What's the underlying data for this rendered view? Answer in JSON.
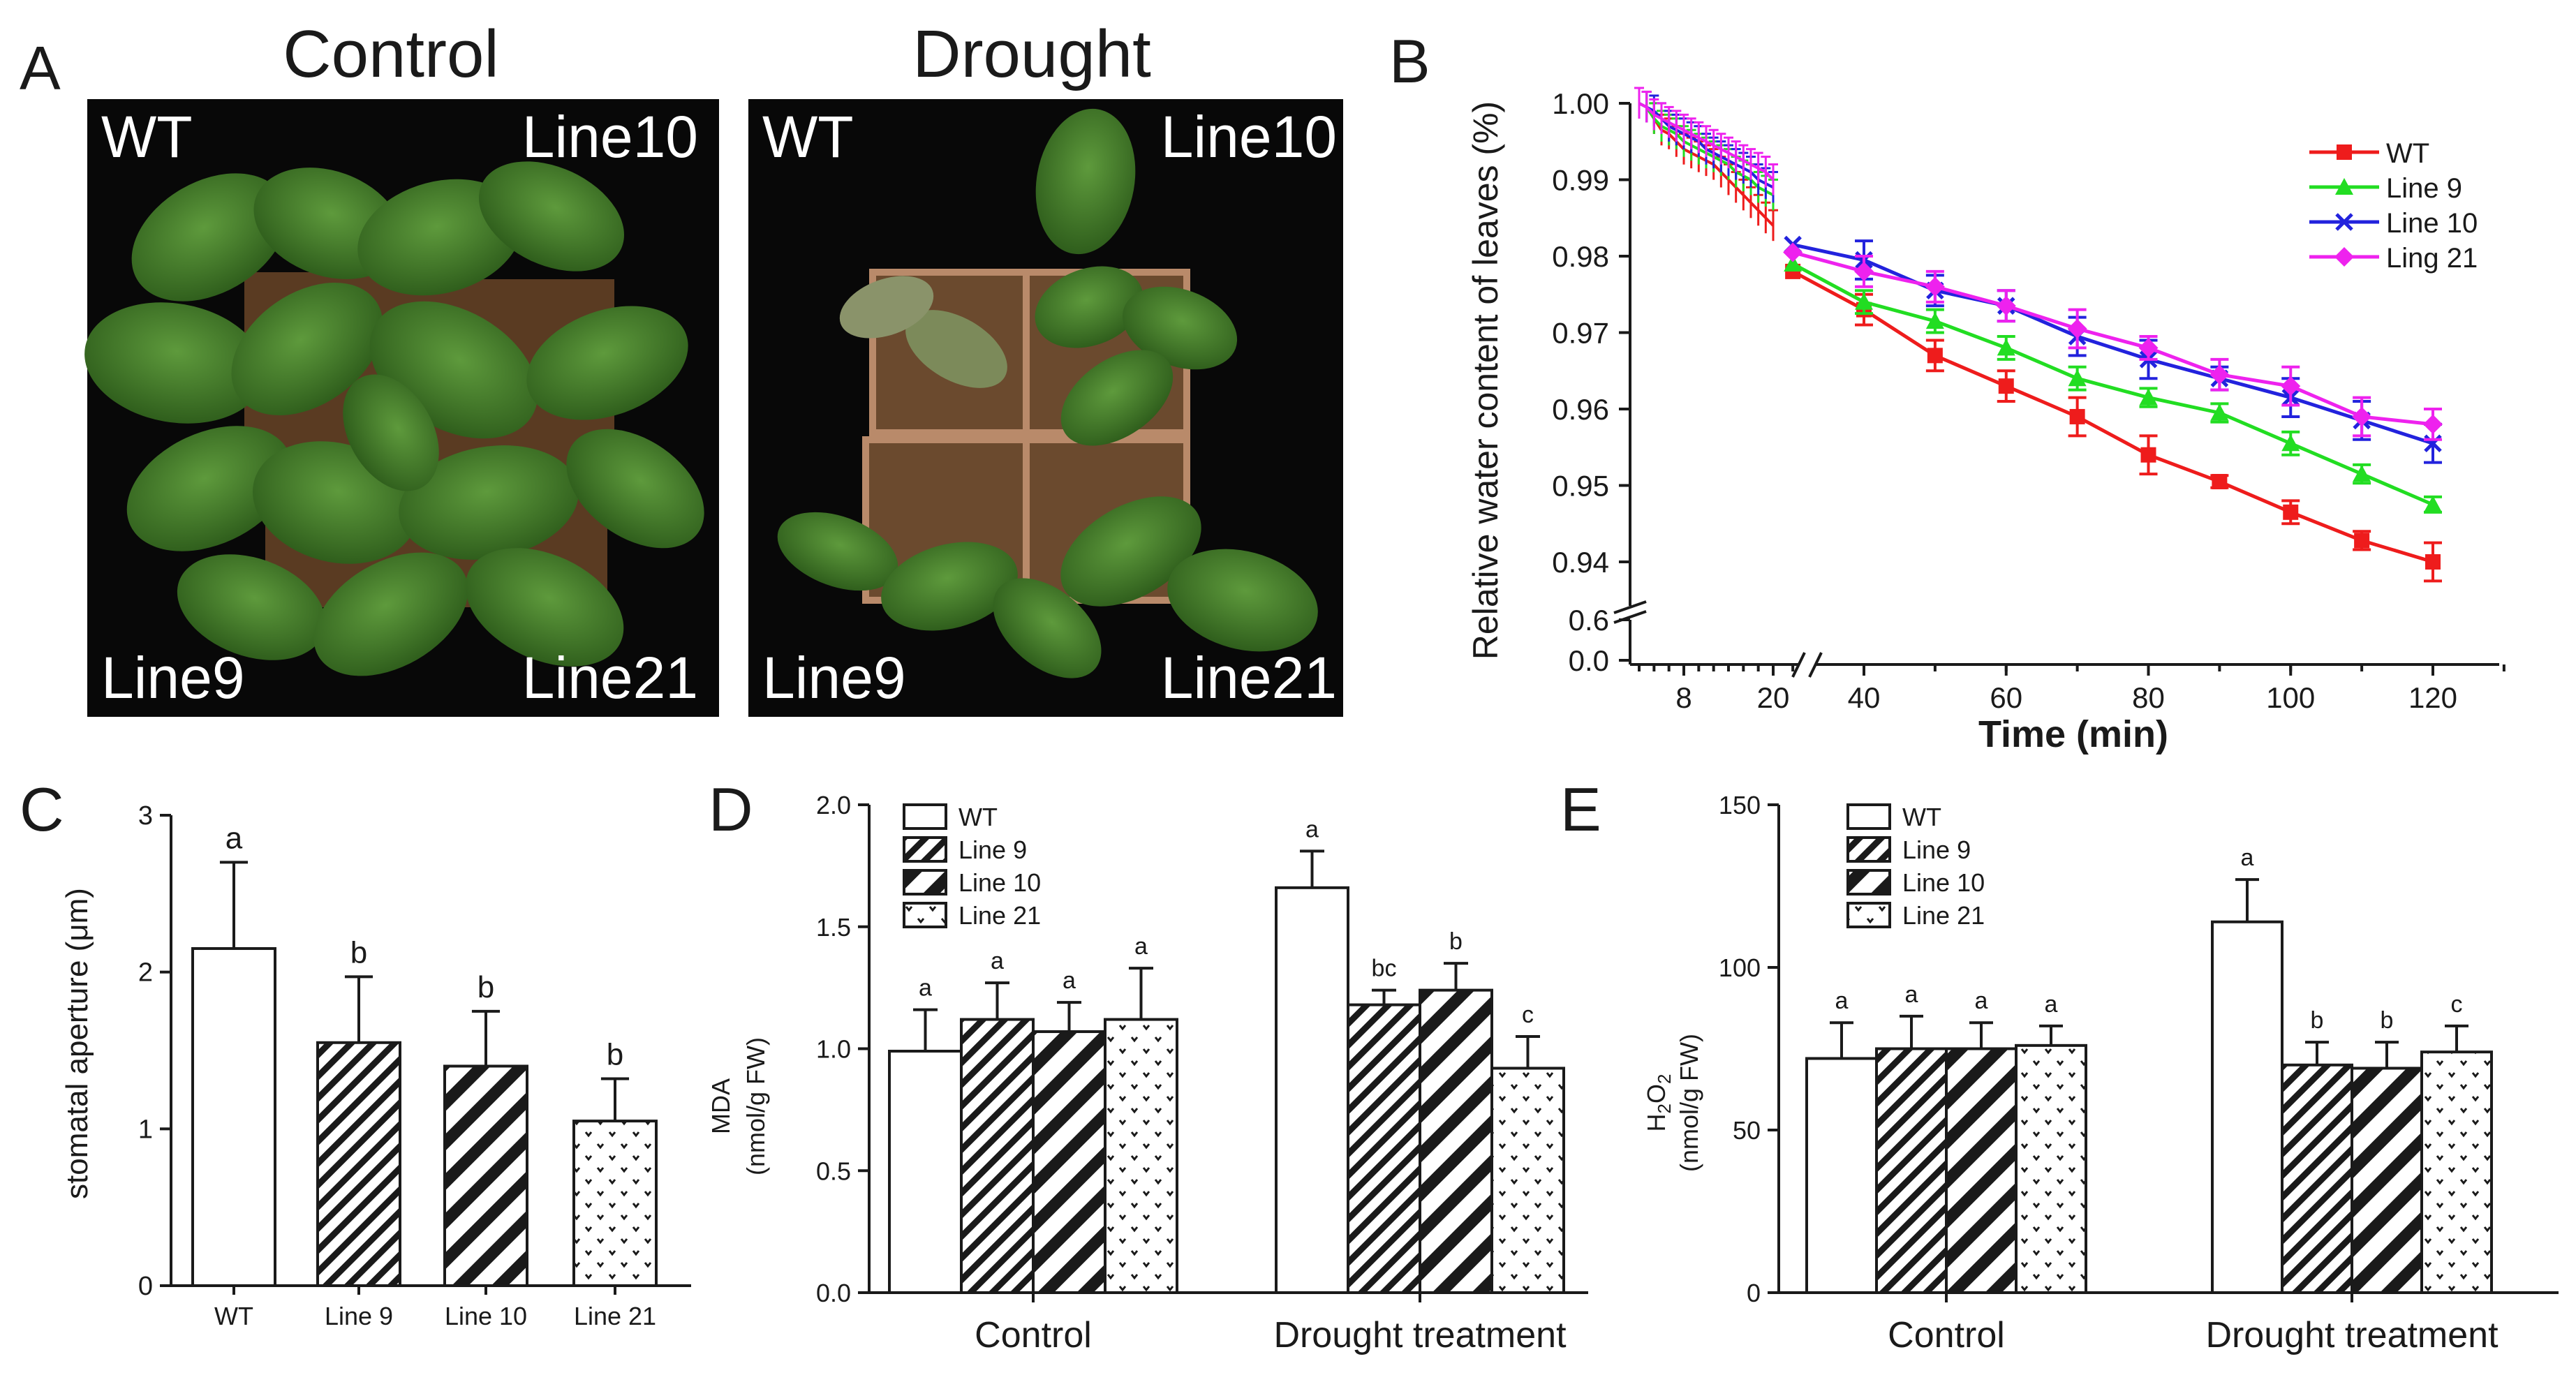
{
  "panel_labels": {
    "a": "A",
    "b": "B",
    "c": "C",
    "d": "D",
    "e": "E"
  },
  "panel_a": {
    "control_title": "Control",
    "drought_title": "Drought",
    "control_labels": {
      "tl": "WT",
      "tr": "Line10",
      "bl": "Line9",
      "br": "Line21"
    },
    "drought_labels": {
      "tl": "WT",
      "tr": "Line10",
      "bl": "Line9",
      "br": "Line21"
    }
  },
  "colors": {
    "wt": "#ee1c1c",
    "line9": "#22dd22",
    "line10": "#2222dd",
    "line21": "#ee22ee",
    "photo_bg": "#080808"
  },
  "chart_data": [
    {
      "panel": "B",
      "type": "line",
      "xlabel": "Time (min)",
      "ylabel": "Relative water content of leaves (%)",
      "x_ticks": [
        "8",
        "20",
        "40",
        "60",
        "80",
        "100",
        "120"
      ],
      "y_ticks": [
        "1.00",
        "0.99",
        "0.98",
        "0.97",
        "0.96",
        "0.95",
        "0.94",
        "0.6",
        "0.0"
      ],
      "ylim": [
        0.936,
        1.0
      ],
      "axis_break": true,
      "series": [
        {
          "name": "WT",
          "color": "#ee1c1c",
          "marker": "square",
          "early_x": [
            2,
            3,
            4,
            5,
            6,
            7,
            8,
            9,
            10,
            11,
            12,
            13,
            14,
            15,
            16,
            17,
            18,
            19,
            20
          ],
          "early_y": [
            1.0,
            0.9995,
            0.998,
            0.9965,
            0.996,
            0.995,
            0.994,
            0.9935,
            0.993,
            0.9925,
            0.992,
            0.991,
            0.99,
            0.989,
            0.988,
            0.987,
            0.986,
            0.985,
            0.984
          ],
          "x": [
            30,
            40,
            50,
            60,
            70,
            80,
            90,
            100,
            110,
            120
          ],
          "y": [
            0.978,
            0.973,
            0.967,
            0.963,
            0.959,
            0.954,
            0.9505,
            0.9465,
            0.9428,
            0.94
          ],
          "err": [
            0,
            0.002,
            0.002,
            0.002,
            0.0025,
            0.0025,
            0.0008,
            0.0015,
            0.0012,
            0.0025
          ]
        },
        {
          "name": "Line 9",
          "color": "#22dd22",
          "marker": "triangle",
          "early_x": [
            2,
            3,
            4,
            5,
            6,
            7,
            8,
            9,
            10,
            11,
            12,
            13,
            14,
            15,
            16,
            17,
            18,
            19,
            20
          ],
          "early_y": [
            1.0,
            0.9995,
            0.998,
            0.997,
            0.9965,
            0.996,
            0.995,
            0.9945,
            0.994,
            0.9935,
            0.993,
            0.9925,
            0.992,
            0.991,
            0.9905,
            0.99,
            0.989,
            0.9885,
            0.988
          ],
          "x": [
            30,
            40,
            50,
            60,
            70,
            80,
            90,
            100,
            110,
            120
          ],
          "y": [
            0.979,
            0.974,
            0.9715,
            0.968,
            0.964,
            0.9615,
            0.9595,
            0.9555,
            0.9515,
            0.9475
          ],
          "err": [
            0,
            0.0015,
            0.0015,
            0.0015,
            0.0015,
            0.0012,
            0.0012,
            0.0015,
            0.0012,
            0.001
          ]
        },
        {
          "name": "Line 10",
          "color": "#2222dd",
          "marker": "x",
          "early_x": [
            2,
            3,
            4,
            5,
            6,
            7,
            8,
            9,
            10,
            11,
            12,
            13,
            14,
            15,
            16,
            17,
            18,
            19,
            20
          ],
          "early_y": [
            1.0,
            0.9995,
            0.999,
            0.998,
            0.997,
            0.9965,
            0.996,
            0.9955,
            0.995,
            0.994,
            0.9935,
            0.993,
            0.9925,
            0.992,
            0.9915,
            0.991,
            0.99,
            0.9895,
            0.989
          ],
          "x": [
            30,
            40,
            50,
            60,
            70,
            80,
            90,
            100,
            110,
            120
          ],
          "y": [
            0.9815,
            0.9795,
            0.9755,
            0.9735,
            0.9695,
            0.9665,
            0.964,
            0.9615,
            0.9585,
            0.9555
          ],
          "err": [
            0,
            0.0025,
            0.002,
            0.002,
            0.0025,
            0.0025,
            0.0015,
            0.0025,
            0.0025,
            0.0025
          ]
        },
        {
          "name": "Ling 21",
          "color": "#ee22ee",
          "marker": "diamond",
          "early_x": [
            2,
            3,
            4,
            5,
            6,
            7,
            8,
            9,
            10,
            11,
            12,
            13,
            14,
            15,
            16,
            17,
            18,
            19,
            20
          ],
          "early_y": [
            1.0,
            0.9995,
            0.9985,
            0.998,
            0.9975,
            0.997,
            0.9965,
            0.996,
            0.9955,
            0.995,
            0.9945,
            0.994,
            0.9935,
            0.993,
            0.9925,
            0.992,
            0.9915,
            0.991,
            0.99
          ],
          "x": [
            30,
            40,
            50,
            60,
            70,
            80,
            90,
            100,
            110,
            120
          ],
          "y": [
            0.9805,
            0.978,
            0.976,
            0.9735,
            0.9705,
            0.968,
            0.9645,
            0.963,
            0.959,
            0.958
          ],
          "err": [
            0,
            0.002,
            0.002,
            0.002,
            0.0025,
            0.0015,
            0.002,
            0.0025,
            0.0025,
            0.002
          ]
        }
      ]
    },
    {
      "panel": "C",
      "type": "bar",
      "ylabel": "stomatal aperture (μm)",
      "categories": [
        "WT",
        "Line 9",
        "Line 10",
        "Line 21"
      ],
      "values": [
        2.15,
        1.55,
        1.4,
        1.05
      ],
      "errors": [
        0.55,
        0.42,
        0.35,
        0.27
      ],
      "letters": [
        "a",
        "b",
        "b",
        "b"
      ],
      "patterns": [
        "blank",
        "hatch-thin",
        "hatch-thick",
        "dots"
      ],
      "y_ticks": [
        "0",
        "1",
        "2",
        "3"
      ],
      "ylim": [
        0,
        3
      ]
    },
    {
      "panel": "D",
      "type": "bar",
      "ylabel_line1": "MDA",
      "ylabel_line2": "(nmol/g FW)",
      "groups": [
        "Control",
        "Drought treatment"
      ],
      "legend": [
        "WT",
        "Line 9",
        "Line 10",
        "Line 21"
      ],
      "series": [
        {
          "name": "WT",
          "pattern": "blank",
          "values": [
            0.99,
            1.66
          ],
          "errors": [
            0.17,
            0.15
          ],
          "letters": [
            "a",
            "a"
          ]
        },
        {
          "name": "Line 9",
          "pattern": "hatch-thin",
          "values": [
            1.12,
            1.18
          ],
          "errors": [
            0.15,
            0.06
          ],
          "letters": [
            "a",
            "bc"
          ]
        },
        {
          "name": "Line 10",
          "pattern": "hatch-thick",
          "values": [
            1.07,
            1.24
          ],
          "errors": [
            0.12,
            0.11
          ],
          "letters": [
            "a",
            "b"
          ]
        },
        {
          "name": "Line 21",
          "pattern": "dots",
          "values": [
            1.12,
            0.92
          ],
          "errors": [
            0.21,
            0.13
          ],
          "letters": [
            "a",
            "c"
          ]
        }
      ],
      "y_ticks": [
        "0.0",
        "0.5",
        "1.0",
        "1.5",
        "2.0"
      ],
      "ylim": [
        0,
        2.0
      ]
    },
    {
      "panel": "E",
      "type": "bar",
      "ylabel_line1": "H",
      "ylabel_sub1": "2",
      "ylabel_mid": "O",
      "ylabel_sub2": "2",
      "ylabel_line2": "(nmol/g FW)",
      "groups": [
        "Control",
        "Drought treatment"
      ],
      "legend": [
        "WT",
        "Line 9",
        "Line 10",
        "Line 21"
      ],
      "series": [
        {
          "name": "WT",
          "pattern": "blank",
          "values": [
            72,
            114
          ],
          "errors": [
            11,
            13
          ],
          "letters": [
            "a",
            "a"
          ]
        },
        {
          "name": "Line 9",
          "pattern": "hatch-thin",
          "values": [
            75,
            70
          ],
          "errors": [
            10,
            7
          ],
          "letters": [
            "a",
            "b"
          ]
        },
        {
          "name": "Line 10",
          "pattern": "hatch-thick",
          "values": [
            75,
            69
          ],
          "errors": [
            8,
            8
          ],
          "letters": [
            "a",
            "b"
          ]
        },
        {
          "name": "Line 21",
          "pattern": "dots",
          "values": [
            76,
            74
          ],
          "errors": [
            6,
            8
          ],
          "letters": [
            "a",
            "c"
          ]
        }
      ],
      "y_ticks": [
        "0",
        "50",
        "100",
        "150"
      ],
      "ylim": [
        0,
        150
      ]
    }
  ]
}
